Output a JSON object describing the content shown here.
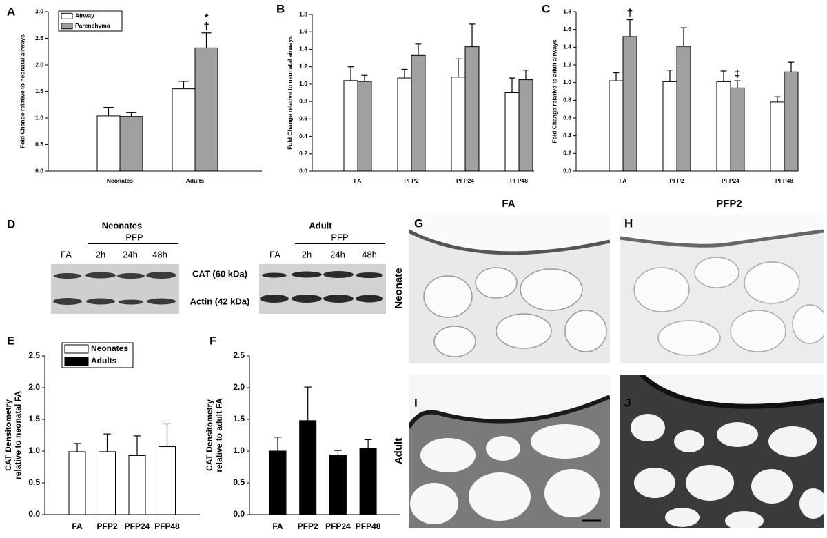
{
  "chart_data": [
    {
      "type": "bar",
      "ylabel": "Fold Change relative to neonatal airways",
      "categories": [
        "Neonates",
        "Adults"
      ],
      "series": [
        {
          "name": "Airway",
          "color": "#ffffff",
          "values": [
            1.04,
            1.55
          ],
          "errors": [
            0.16,
            0.14
          ]
        },
        {
          "name": "Parenchyma",
          "color": "#a0a0a0",
          "values": [
            1.03,
            2.32
          ],
          "errors": [
            0.07,
            0.28
          ],
          "symbols": [
            null,
            [
              "*",
              "†"
            ]
          ]
        }
      ],
      "ylim": [
        0,
        3
      ],
      "yticks": [
        {
          "value": 0,
          "label": "0.0"
        },
        {
          "value": 0.5,
          "label": "0.5"
        },
        {
          "value": 1,
          "label": "1.0"
        },
        {
          "value": 1.5,
          "label": "1.5"
        },
        {
          "value": 2,
          "label": "2.0"
        },
        {
          "value": 2.5,
          "label": "2.5"
        },
        {
          "value": 3,
          "label": "3.0"
        }
      ],
      "legend": "upper left"
    },
    {
      "type": "bar",
      "ylabel": "Fold Change relative to neonatal airways",
      "categories": [
        "FA",
        "PFP2",
        "PFP24",
        "PFP48"
      ],
      "series": [
        {
          "color": "#ffffff",
          "values": [
            1.04,
            1.07,
            1.08,
            0.9
          ],
          "errors": [
            0.16,
            0.1,
            0.21,
            0.17
          ]
        },
        {
          "color": "#a0a0a0",
          "values": [
            1.03,
            1.33,
            1.43,
            1.05
          ],
          "errors": [
            0.07,
            0.13,
            0.26,
            0.11
          ]
        }
      ],
      "ylim": [
        0,
        1.8
      ],
      "yticks": [
        {
          "value": 0,
          "label": "0.0"
        },
        {
          "value": 0.2,
          "label": "0.2"
        },
        {
          "value": 0.4,
          "label": "0.4"
        },
        {
          "value": 0.6,
          "label": "0.6"
        },
        {
          "value": 0.8,
          "label": "0.8"
        },
        {
          "value": 1,
          "label": "1.0"
        },
        {
          "value": 1.2,
          "label": "1.2"
        },
        {
          "value": 1.4,
          "label": "1.4"
        },
        {
          "value": 1.6,
          "label": "1.6"
        },
        {
          "value": 1.8,
          "label": "1.8"
        }
      ]
    },
    {
      "type": "bar",
      "ylabel": "Fold Change relative to adult airways",
      "categories": [
        "FA",
        "PFP2",
        "PFP24",
        "PFP48"
      ],
      "series": [
        {
          "color": "#ffffff",
          "values": [
            1.02,
            1.01,
            1.01,
            0.78
          ],
          "errors": [
            0.09,
            0.13,
            0.12,
            0.06
          ]
        },
        {
          "color": "#a0a0a0",
          "values": [
            1.52,
            1.41,
            0.94,
            1.12
          ],
          "errors": [
            0.19,
            0.21,
            0.08,
            0.11
          ],
          "symbols": [
            "†",
            null,
            "‡",
            null
          ]
        }
      ],
      "ylim": [
        0,
        1.8
      ],
      "yticks": [
        {
          "value": 0,
          "label": "0.0"
        },
        {
          "value": 0.2,
          "label": "0.2"
        },
        {
          "value": 0.4,
          "label": "0.4"
        },
        {
          "value": 0.6,
          "label": "0.6"
        },
        {
          "value": 0.8,
          "label": "0.8"
        },
        {
          "value": 1,
          "label": "1.0"
        },
        {
          "value": 1.2,
          "label": "1.2"
        },
        {
          "value": 1.4,
          "label": "1.4"
        },
        {
          "value": 1.6,
          "label": "1.6"
        },
        {
          "value": 1.8,
          "label": "1.8"
        }
      ]
    },
    {
      "type": "bar",
      "ylabel": [
        "CAT Densitometry",
        "relative to neonatal FA"
      ],
      "categories": [
        "FA",
        "PFP2",
        "PFP24",
        "PFP48"
      ],
      "series": [
        {
          "color": "#ffffff",
          "values": [
            0.99,
            0.99,
            0.93,
            1.07
          ],
          "errors": [
            0.13,
            0.28,
            0.31,
            0.36
          ]
        }
      ],
      "ylim": [
        0,
        2.5
      ],
      "yticks": [
        {
          "value": 0,
          "label": "0.0"
        },
        {
          "value": 0.5,
          "label": "0.5"
        },
        {
          "value": 1,
          "label": "1.0"
        },
        {
          "value": 1.5,
          "label": "1.5"
        },
        {
          "value": 2,
          "label": "2.0"
        },
        {
          "value": 2.5,
          "label": "2.5"
        }
      ],
      "legend": [
        {
          "name": "Neonates",
          "color": "#ffffff"
        },
        {
          "name": "Adults",
          "color": "#000000"
        }
      ]
    },
    {
      "type": "bar",
      "ylabel": [
        "CAT Densitometry",
        "relative to adult FA"
      ],
      "categories": [
        "FA",
        "PFP2",
        "PFP24",
        "PFP48"
      ],
      "series": [
        {
          "color": "#000000",
          "values": [
            1.0,
            1.48,
            0.94,
            1.04
          ],
          "errors": [
            0.22,
            0.53,
            0.07,
            0.14
          ]
        }
      ],
      "ylim": [
        0,
        2.5
      ],
      "yticks": [
        {
          "value": 0,
          "label": "0.0"
        },
        {
          "value": 0.5,
          "label": "0.5"
        },
        {
          "value": 1,
          "label": "1.0"
        },
        {
          "value": 1.5,
          "label": "1.5"
        },
        {
          "value": 2,
          "label": "2.0"
        },
        {
          "value": 2.5,
          "label": "2.5"
        }
      ]
    }
  ],
  "panel_labels": [
    "A",
    "B",
    "C",
    "D",
    "E",
    "F",
    "G",
    "H",
    "I",
    "J"
  ],
  "blot": {
    "groups": [
      {
        "title": "Neonates",
        "treatment": "PFP",
        "lanes": [
          "FA",
          "2h",
          "24h",
          "48h"
        ]
      },
      {
        "title": "Adult",
        "treatment": "PFP",
        "lanes": [
          "FA",
          "2h",
          "24h",
          "48h"
        ]
      }
    ],
    "bands": [
      "CAT (60 kDa)",
      "Actin (42 kDa)"
    ]
  },
  "histology": {
    "columns": [
      "FA",
      "PFP2"
    ],
    "rows": [
      "Neonate",
      "Adult"
    ]
  }
}
